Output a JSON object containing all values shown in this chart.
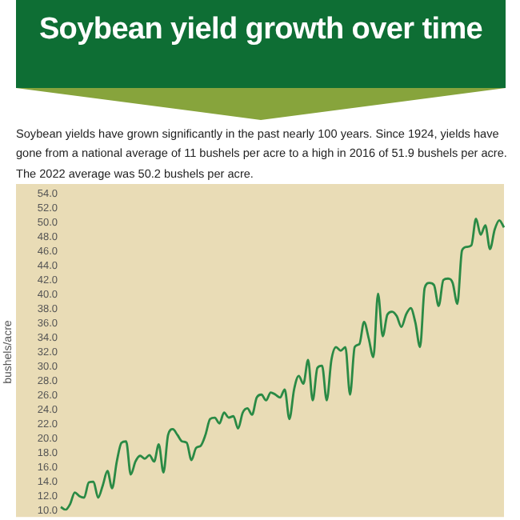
{
  "chart_data": {
    "type": "line",
    "title": "Soybean yield growth over time",
    "subtitle": "Soybean yields have grown significantly in the past nearly 100 years. Since 1924, yields have gone from a national average of 11 bushels per acre to a high in 2016 of 51.9 bushels per acre. The 2022 average was 50.2 bushels per acre.",
    "ylabel": "bushels/acre",
    "categories": [
      null,
      null,
      null,
      null,
      null,
      null,
      null,
      null,
      null,
      null,
      null,
      null,
      null,
      null,
      null,
      null,
      null,
      null,
      null,
      null,
      null,
      null,
      null,
      null,
      null,
      null,
      null,
      null,
      null,
      null,
      null,
      null,
      null,
      null,
      null,
      null,
      null,
      null,
      null,
      null,
      null,
      null,
      null,
      null,
      null,
      null,
      null,
      null,
      null,
      null,
      null,
      null,
      null,
      null,
      null,
      null,
      null,
      null,
      null,
      null,
      null,
      null,
      null,
      null,
      null,
      null,
      null,
      null,
      null,
      null,
      null,
      null,
      null,
      null,
      null,
      null,
      null,
      null,
      null,
      null,
      null,
      null,
      null,
      null,
      null,
      null,
      null,
      null,
      null,
      null,
      null,
      null,
      null,
      null,
      null,
      null
    ],
    "series": [
      {
        "color": "#2a8a45",
        "values": [
          10.5,
          10.1,
          10.9,
          12.5,
          12.0,
          11.8,
          13.9,
          14.0,
          11.8,
          13.5,
          15.5,
          13.1,
          16.8,
          19.4,
          19.6,
          15.0,
          16.8,
          17.6,
          17.2,
          17.7,
          16.8,
          19.2,
          15.3,
          20.5,
          21.3,
          20.5,
          19.6,
          19.4,
          17.0,
          18.7,
          19.0,
          20.5,
          22.7,
          22.9,
          22.1,
          23.6,
          22.9,
          23.1,
          21.4,
          23.6,
          24.2,
          23.3,
          25.7,
          26.1,
          25.3,
          26.4,
          26.1,
          25.7,
          26.8,
          22.7,
          26.8,
          28.7,
          27.6,
          30.9,
          25.3,
          29.8,
          30.1,
          25.3,
          30.9,
          32.7,
          32.2,
          32.7,
          26.1,
          32.7,
          33.1,
          36.2,
          33.9,
          31.3,
          40.1,
          34.2,
          37.2,
          37.6,
          37.0,
          35.5,
          37.2,
          38.1,
          36.1,
          32.7,
          40.9,
          41.6,
          41.3,
          38.4,
          42.0,
          42.2,
          41.6,
          38.7,
          46.1,
          46.6,
          46.8,
          50.5,
          48.3,
          49.6,
          46.3,
          49.0,
          50.3,
          49.3
        ]
      }
    ],
    "ylim": [
      10,
      54
    ],
    "yticks": [
      {
        "value": 10,
        "label": "10.0"
      },
      {
        "value": 12,
        "label": "12.0"
      },
      {
        "value": 14,
        "label": "14.0"
      },
      {
        "value": 16,
        "label": "16.0"
      },
      {
        "value": 18,
        "label": "18.0"
      },
      {
        "value": 20,
        "label": "20.0"
      },
      {
        "value": 22,
        "label": "22.0"
      },
      {
        "value": 24,
        "label": "24.0"
      },
      {
        "value": 26,
        "label": "26.0"
      },
      {
        "value": 28,
        "label": "28.0"
      },
      {
        "value": 30,
        "label": "30.0"
      },
      {
        "value": 32,
        "label": "32.0"
      },
      {
        "value": 34,
        "label": "34.0"
      },
      {
        "value": 36,
        "label": "36.0"
      },
      {
        "value": 38,
        "label": "38.0"
      },
      {
        "value": 40,
        "label": "40.0"
      },
      {
        "value": 42,
        "label": "42.0"
      },
      {
        "value": 44,
        "label": "44.0"
      },
      {
        "value": 46,
        "label": "46.0"
      },
      {
        "value": 48,
        "label": "48.0"
      },
      {
        "value": 50,
        "label": "50.0"
      },
      {
        "value": 52,
        "label": "52.0"
      },
      {
        "value": 54,
        "label": "54.0"
      }
    ],
    "tick_labels": "y"
  }
}
